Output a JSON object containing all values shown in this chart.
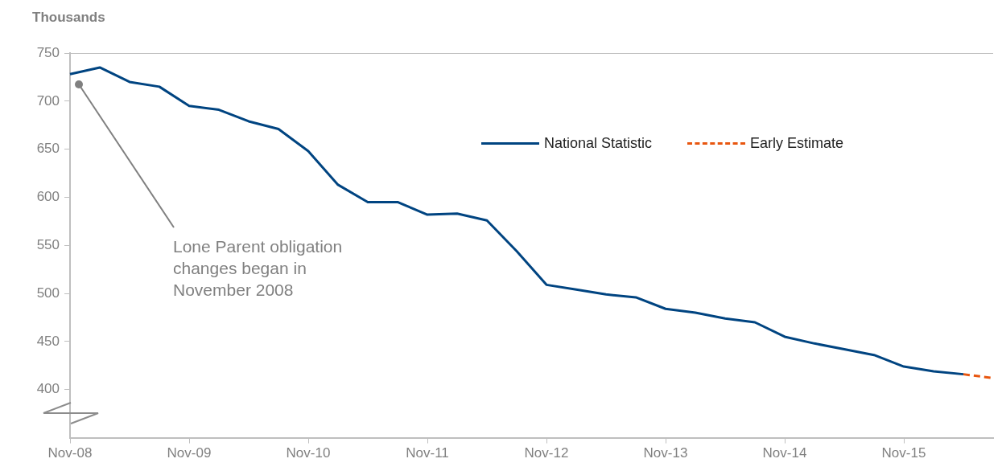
{
  "chart_data": {
    "type": "line",
    "ylabel": "Thousands",
    "categories": [
      "Nov-08",
      null,
      null,
      null,
      "Nov-09",
      null,
      null,
      null,
      "Nov-10",
      null,
      null,
      null,
      "Nov-11",
      null,
      null,
      null,
      "Nov-12",
      null,
      null,
      null,
      "Nov-13",
      null,
      null,
      null,
      "Nov-14",
      null,
      null,
      null,
      "Nov-15",
      null,
      null,
      null
    ],
    "series": [
      {
        "name": "National Statistic",
        "color": "#004481",
        "line_style": "solid",
        "values": [
          728,
          735,
          720,
          715,
          695,
          691,
          679,
          671,
          648,
          613,
          595,
          595,
          582,
          583,
          576,
          544,
          509,
          504,
          499,
          496,
          484,
          480,
          474,
          470,
          455,
          448,
          442,
          436,
          424,
          419,
          416,
          null
        ]
      },
      {
        "name": "Early Estimate",
        "color": "#e8560f",
        "line_style": "dashed",
        "values": [
          null,
          null,
          null,
          null,
          null,
          null,
          null,
          null,
          null,
          null,
          null,
          null,
          null,
          null,
          null,
          null,
          null,
          null,
          null,
          null,
          null,
          null,
          null,
          null,
          null,
          null,
          null,
          null,
          null,
          null,
          416,
          412
        ]
      }
    ],
    "ylim": [
      350,
      750
    ],
    "yticks": [
      400,
      450,
      500,
      550,
      600,
      650,
      700,
      750
    ],
    "grid": false,
    "legend": "top right",
    "marker": "none",
    "annotations": [
      "Lone Parent obligation changes began in November 2008"
    ]
  }
}
